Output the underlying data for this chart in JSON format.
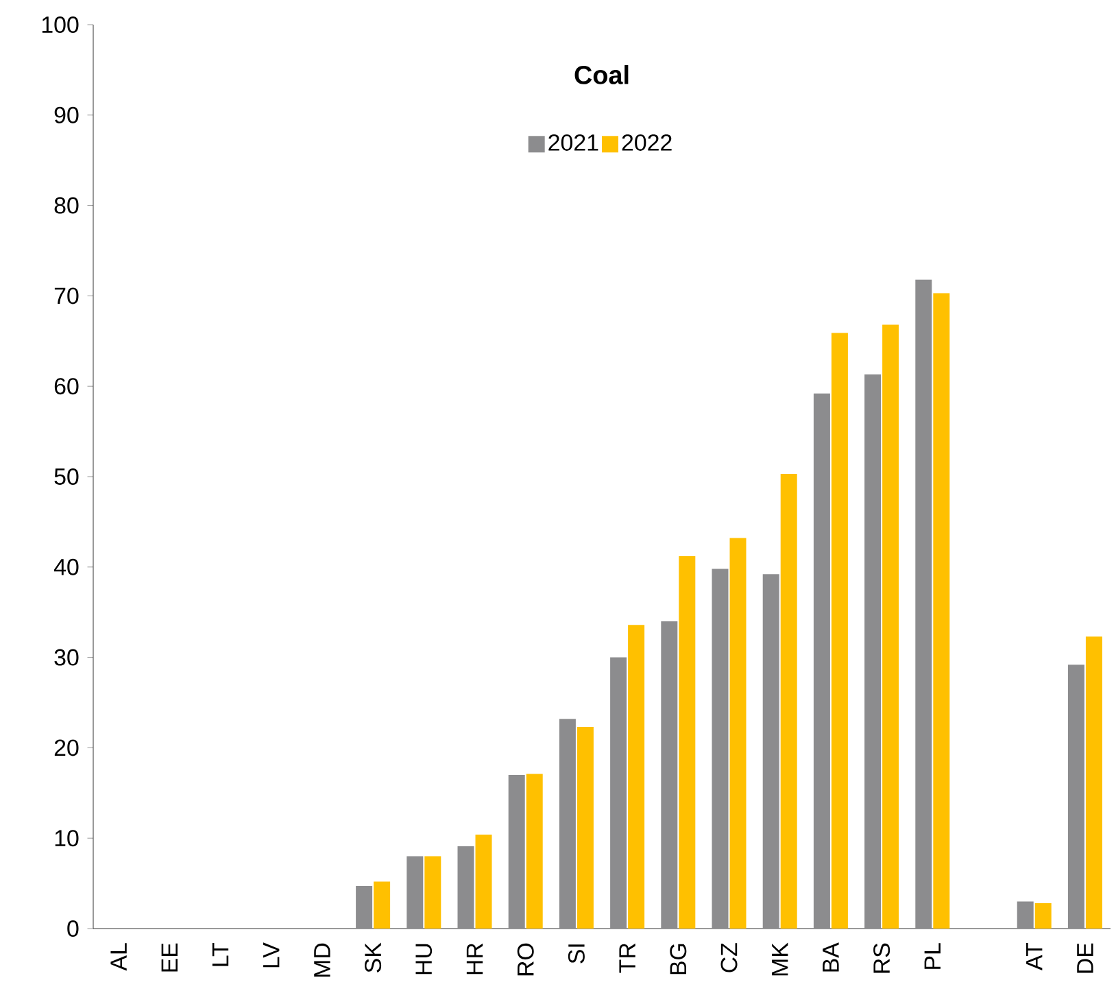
{
  "chart_data": {
    "type": "bar",
    "title": "Coal",
    "categories": [
      "AL",
      "EE",
      "LT",
      "LV",
      "MD",
      "SK",
      "HU",
      "HR",
      "RO",
      "SI",
      "TR",
      "BG",
      "CZ",
      "MK",
      "BA",
      "RS",
      "PL",
      null,
      "AT",
      "DE"
    ],
    "series": [
      {
        "name": "2021",
        "color": "#8c8c8e",
        "values": [
          0,
          0,
          0,
          0,
          0,
          4.7,
          8.0,
          9.1,
          17.0,
          23.2,
          30.0,
          34.0,
          39.8,
          39.2,
          59.2,
          61.3,
          71.8,
          null,
          3.0,
          29.2
        ]
      },
      {
        "name": "2022",
        "color": "#ffc000",
        "values": [
          0,
          0,
          0,
          0,
          0,
          5.2,
          8.0,
          10.4,
          17.1,
          22.3,
          33.6,
          41.2,
          43.2,
          50.3,
          65.9,
          66.8,
          70.3,
          null,
          2.8,
          32.3
        ]
      }
    ],
    "ylim": [
      0,
      100
    ],
    "yticks": [
      0,
      10,
      20,
      30,
      40,
      50,
      60,
      70,
      80,
      90,
      100
    ],
    "grid": false,
    "legend": "top"
  }
}
